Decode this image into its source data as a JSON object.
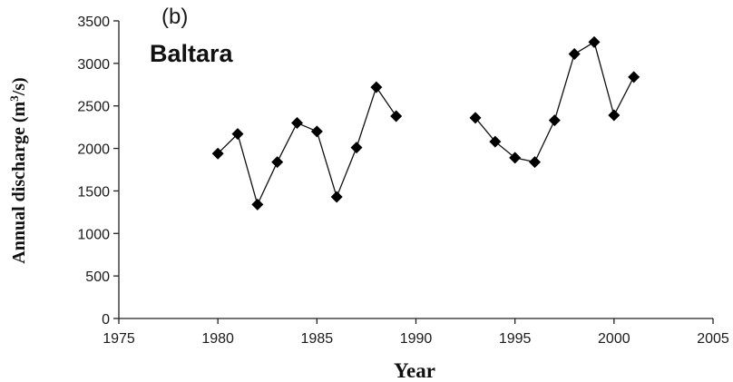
{
  "chart_data": {
    "type": "line",
    "panel_label": "(b)",
    "site": "Baltara",
    "xlabel": "Year",
    "ylabel_prefix": "Annual discharge (m",
    "ylabel_sup": "3",
    "ylabel_suffix": "/s)",
    "xlim": [
      1975,
      2005
    ],
    "ylim": [
      0,
      3500
    ],
    "x_ticks": [
      "1975",
      "1980",
      "1985",
      "1990",
      "1995",
      "2000",
      "2005"
    ],
    "y_ticks": [
      "0",
      "500",
      "1000",
      "1500",
      "2000",
      "2500",
      "3000",
      "3500"
    ],
    "grid": false,
    "marker": "diamond",
    "series": [
      {
        "x": [
          1980,
          1981,
          1982,
          1983,
          1984,
          1985,
          1986,
          1987,
          1988,
          1989,
          1993,
          1994,
          1995,
          1996,
          1997,
          1998,
          1999,
          2000,
          2001
        ],
        "values": [
          1940,
          2170,
          1340,
          1840,
          2300,
          2200,
          1430,
          2010,
          2720,
          2380,
          2360,
          2080,
          1890,
          1840,
          2330,
          3110,
          3250,
          2390,
          2840
        ],
        "segments": [
          [
            0,
            9
          ],
          [
            10,
            18
          ]
        ]
      }
    ]
  }
}
